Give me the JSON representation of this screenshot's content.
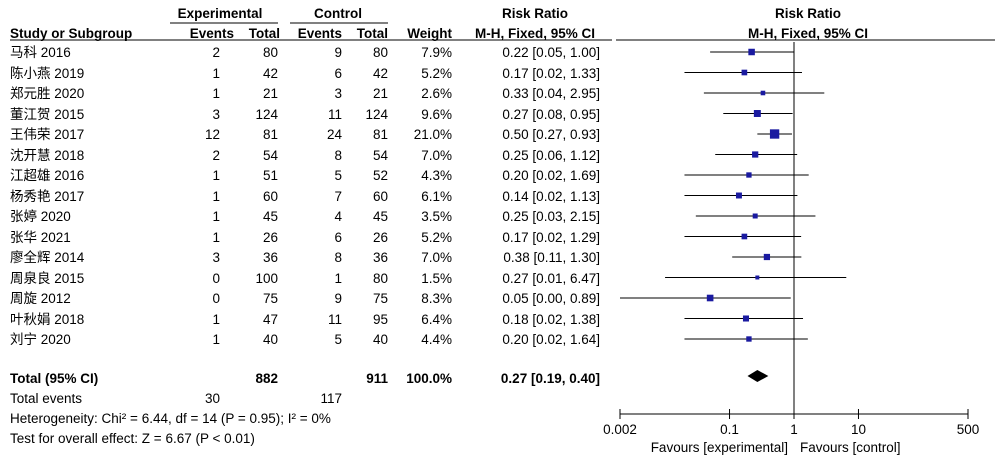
{
  "headers": {
    "study": "Study or Subgroup",
    "group_experimental": "Experimental",
    "group_control": "Control",
    "events": "Events",
    "total": "Total",
    "weight": "Weight",
    "rr_title": "Risk Ratio",
    "rr_method": "M-H, Fixed, 95% CI",
    "plot_title": "Risk Ratio",
    "plot_method": "M-H, Fixed, 95% CI"
  },
  "studies": [
    {
      "name": "马科 2016",
      "e_events": "2",
      "e_total": "80",
      "c_events": "9",
      "c_total": "80",
      "weight": "7.9%",
      "ci": "0.22 [0.05, 1.00]"
    },
    {
      "name": "陈小燕 2019",
      "e_events": "1",
      "e_total": "42",
      "c_events": "6",
      "c_total": "42",
      "weight": "5.2%",
      "ci": "0.17 [0.02, 1.33]"
    },
    {
      "name": "郑元胜 2020",
      "e_events": "1",
      "e_total": "21",
      "c_events": "3",
      "c_total": "21",
      "weight": "2.6%",
      "ci": "0.33 [0.04, 2.95]"
    },
    {
      "name": "董江贺 2015",
      "e_events": "3",
      "e_total": "124",
      "c_events": "11",
      "c_total": "124",
      "weight": "9.6%",
      "ci": "0.27 [0.08, 0.95]"
    },
    {
      "name": "王伟荣 2017",
      "e_events": "12",
      "e_total": "81",
      "c_events": "24",
      "c_total": "81",
      "weight": "21.0%",
      "ci": "0.50 [0.27, 0.93]"
    },
    {
      "name": "沈开慧 2018",
      "e_events": "2",
      "e_total": "54",
      "c_events": "8",
      "c_total": "54",
      "weight": "7.0%",
      "ci": "0.25 [0.06, 1.12]"
    },
    {
      "name": "江超雄 2016",
      "e_events": "1",
      "e_total": "51",
      "c_events": "5",
      "c_total": "52",
      "weight": "4.3%",
      "ci": "0.20 [0.02, 1.69]"
    },
    {
      "name": "杨秀艳 2017",
      "e_events": "1",
      "e_total": "60",
      "c_events": "7",
      "c_total": "60",
      "weight": "6.1%",
      "ci": "0.14 [0.02, 1.13]"
    },
    {
      "name": "张婷 2020",
      "e_events": "1",
      "e_total": "45",
      "c_events": "4",
      "c_total": "45",
      "weight": "3.5%",
      "ci": "0.25 [0.03, 2.15]"
    },
    {
      "name": "张华 2021",
      "e_events": "1",
      "e_total": "26",
      "c_events": "6",
      "c_total": "26",
      "weight": "5.2%",
      "ci": "0.17 [0.02, 1.29]"
    },
    {
      "name": "廖全辉 2014",
      "e_events": "3",
      "e_total": "36",
      "c_events": "8",
      "c_total": "36",
      "weight": "7.0%",
      "ci": "0.38 [0.11, 1.30]"
    },
    {
      "name": "周泉良 2015",
      "e_events": "0",
      "e_total": "100",
      "c_events": "1",
      "c_total": "80",
      "weight": "1.5%",
      "ci": "0.27 [0.01, 6.47]"
    },
    {
      "name": "周旋 2012",
      "e_events": "0",
      "e_total": "75",
      "c_events": "9",
      "c_total": "75",
      "weight": "8.3%",
      "ci": "0.05 [0.00, 0.89]"
    },
    {
      "name": "叶秋娟 2018",
      "e_events": "1",
      "e_total": "47",
      "c_events": "11",
      "c_total": "95",
      "weight": "6.4%",
      "ci": "0.18 [0.02, 1.38]"
    },
    {
      "name": "刘宁 2020",
      "e_events": "1",
      "e_total": "40",
      "c_events": "5",
      "c_total": "40",
      "weight": "4.4%",
      "ci": "0.20 [0.02, 1.64]"
    }
  ],
  "total": {
    "label": "Total (95% CI)",
    "e_total": "882",
    "c_total": "911",
    "weight": "100.0%",
    "ci": "0.27 [0.19, 0.40]"
  },
  "total_events": {
    "label": "Total events",
    "e_events": "30",
    "c_events": "117"
  },
  "heterogeneity": "Heterogeneity: Chi² = 6.44, df = 14 (P = 0.95); I² = 0%",
  "overall_effect": "Test for overall effect: Z = 6.67 (P < 0.01)",
  "colors": {
    "marker": "#1a1aa0",
    "line": "#000000",
    "text": "#000000"
  },
  "chart_data": {
    "type": "scatter",
    "scale": "log",
    "xlim": [
      0.002,
      500
    ],
    "xticks": [
      "0.002",
      "0.1",
      "1",
      "10",
      "500"
    ],
    "xtick_values": [
      0.002,
      0.1,
      1,
      10,
      500
    ],
    "null_value": 1,
    "xlabel_left": "Favours [experimental]",
    "xlabel_right": "Favours [control]",
    "points": [
      {
        "rr": 0.22,
        "lo": 0.05,
        "hi": 1.0,
        "weight": 7.9
      },
      {
        "rr": 0.17,
        "lo": 0.02,
        "hi": 1.33,
        "weight": 5.2
      },
      {
        "rr": 0.33,
        "lo": 0.04,
        "hi": 2.95,
        "weight": 2.6
      },
      {
        "rr": 0.27,
        "lo": 0.08,
        "hi": 0.95,
        "weight": 9.6
      },
      {
        "rr": 0.5,
        "lo": 0.27,
        "hi": 0.93,
        "weight": 21.0
      },
      {
        "rr": 0.25,
        "lo": 0.06,
        "hi": 1.12,
        "weight": 7.0
      },
      {
        "rr": 0.2,
        "lo": 0.02,
        "hi": 1.69,
        "weight": 4.3
      },
      {
        "rr": 0.14,
        "lo": 0.02,
        "hi": 1.13,
        "weight": 6.1
      },
      {
        "rr": 0.25,
        "lo": 0.03,
        "hi": 2.15,
        "weight": 3.5
      },
      {
        "rr": 0.17,
        "lo": 0.02,
        "hi": 1.29,
        "weight": 5.2
      },
      {
        "rr": 0.38,
        "lo": 0.11,
        "hi": 1.3,
        "weight": 7.0
      },
      {
        "rr": 0.27,
        "lo": 0.01,
        "hi": 6.47,
        "weight": 1.5
      },
      {
        "rr": 0.05,
        "lo": 0.0,
        "hi": 0.89,
        "weight": 8.3
      },
      {
        "rr": 0.18,
        "lo": 0.02,
        "hi": 1.38,
        "weight": 6.4
      },
      {
        "rr": 0.2,
        "lo": 0.02,
        "hi": 1.64,
        "weight": 4.4
      }
    ],
    "pooled": {
      "rr": 0.27,
      "lo": 0.19,
      "hi": 0.4
    }
  }
}
